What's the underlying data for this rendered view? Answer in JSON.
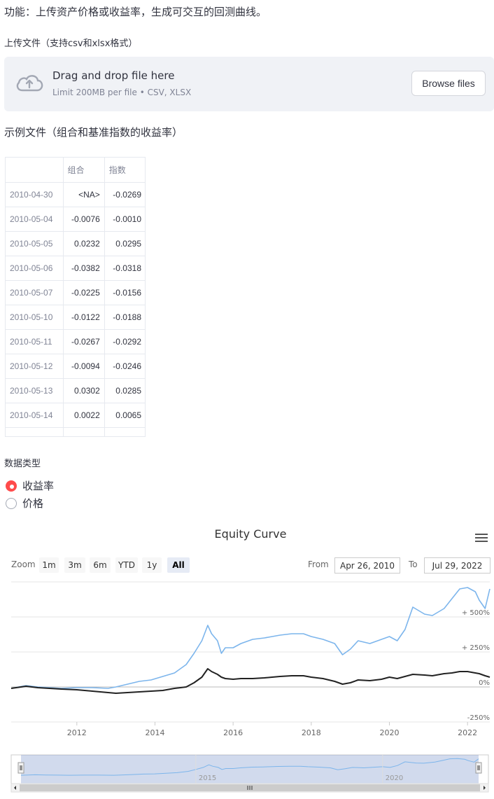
{
  "intro": "功能：上传资产价格或收益率，生成可交互的回测曲线。",
  "upload": {
    "label": "上传文件（支持csv和xlsx格式）",
    "title": "Drag and drop file here",
    "subtitle": "Limit 200MB per file • CSV, XLSX",
    "browse_label": "Browse files"
  },
  "example": {
    "label": "示例文件（组合和基准指数的收益率）",
    "columns": [
      "组合",
      "指数"
    ],
    "rows": [
      {
        "date": "2010-04-30",
        "c1": "<NA>",
        "c2": "-0.0269"
      },
      {
        "date": "2010-05-04",
        "c1": "-0.0076",
        "c2": "-0.0010"
      },
      {
        "date": "2010-05-05",
        "c1": "0.0232",
        "c2": "0.0295"
      },
      {
        "date": "2010-05-06",
        "c1": "-0.0382",
        "c2": "-0.0318"
      },
      {
        "date": "2010-05-07",
        "c1": "-0.0225",
        "c2": "-0.0156"
      },
      {
        "date": "2010-05-10",
        "c1": "-0.0122",
        "c2": "-0.0188"
      },
      {
        "date": "2010-05-11",
        "c1": "-0.0267",
        "c2": "-0.0292"
      },
      {
        "date": "2010-05-12",
        "c1": "-0.0094",
        "c2": "-0.0246"
      },
      {
        "date": "2010-05-13",
        "c1": "0.0302",
        "c2": "0.0285"
      },
      {
        "date": "2010-05-14",
        "c1": "0.0022",
        "c2": "0.0065"
      }
    ]
  },
  "data_type": {
    "label": "数据类型",
    "options": [
      "收益率",
      "价格"
    ],
    "selected": "收益率",
    "accent": "#ff4b4b"
  },
  "chart": {
    "zoom_label": "Zoom",
    "zoom_buttons": [
      "1m",
      "3m",
      "6m",
      "YTD",
      "1y",
      "All"
    ],
    "zoom_active": "All",
    "from_label": "From",
    "from_value": "Apr 26, 2010",
    "to_label": "To",
    "to_value": "Jul 29, 2022",
    "menu_icon": "hamburger-menu-icon"
  },
  "chart_data": {
    "type": "line",
    "title": "Equity Curve",
    "xlabel": "",
    "ylabel": "",
    "x_ticks": [
      "2012",
      "2014",
      "2016",
      "2018",
      "2020",
      "2022"
    ],
    "y_ticks": [
      "-250%",
      "0%",
      "+ 250%",
      "+ 500%"
    ],
    "ylim": [
      -250,
      750
    ],
    "x_range": [
      2010.32,
      2022.57
    ],
    "navigator_ticks": [
      "2015",
      "2020"
    ],
    "series": [
      {
        "color": "#7cb5ec",
        "x": [
          2010.32,
          2010.7,
          2011.0,
          2011.3,
          2011.6,
          2012.0,
          2012.4,
          2012.8,
          2013.0,
          2013.3,
          2013.6,
          2013.9,
          2014.2,
          2014.5,
          2014.8,
          2015.0,
          2015.2,
          2015.35,
          2015.45,
          2015.6,
          2015.7,
          2015.8,
          2016.0,
          2016.2,
          2016.5,
          2016.8,
          2017.0,
          2017.2,
          2017.5,
          2017.8,
          2018.0,
          2018.3,
          2018.6,
          2018.8,
          2019.0,
          2019.2,
          2019.5,
          2019.8,
          2020.0,
          2020.2,
          2020.4,
          2020.6,
          2020.9,
          2021.1,
          2021.4,
          2021.6,
          2021.8,
          2022.0,
          2022.2,
          2022.3,
          2022.45,
          2022.57
        ],
        "y": [
          -10,
          10,
          0,
          -5,
          -10,
          -5,
          -5,
          -10,
          0,
          20,
          40,
          50,
          75,
          100,
          160,
          240,
          330,
          440,
          380,
          330,
          240,
          280,
          280,
          310,
          340,
          350,
          360,
          370,
          380,
          380,
          360,
          340,
          310,
          230,
          270,
          330,
          310,
          340,
          360,
          330,
          410,
          570,
          520,
          510,
          560,
          630,
          700,
          710,
          680,
          620,
          560,
          700
        ]
      },
      {
        "color": "#222222",
        "x": [
          2010.32,
          2010.7,
          2011.0,
          2011.3,
          2011.6,
          2012.0,
          2012.4,
          2012.8,
          2013.0,
          2013.3,
          2013.6,
          2013.9,
          2014.2,
          2014.5,
          2014.8,
          2015.0,
          2015.2,
          2015.35,
          2015.45,
          2015.6,
          2015.7,
          2015.8,
          2016.0,
          2016.2,
          2016.5,
          2016.8,
          2017.0,
          2017.2,
          2017.5,
          2017.8,
          2018.0,
          2018.3,
          2018.6,
          2018.8,
          2019.0,
          2019.2,
          2019.5,
          2019.8,
          2020.0,
          2020.2,
          2020.4,
          2020.6,
          2020.9,
          2021.1,
          2021.4,
          2021.6,
          2021.8,
          2022.0,
          2022.2,
          2022.3,
          2022.45,
          2022.57
        ],
        "y": [
          -10,
          5,
          -5,
          -10,
          -15,
          -20,
          -30,
          -40,
          -45,
          -40,
          -35,
          -30,
          -25,
          -10,
          0,
          30,
          70,
          130,
          110,
          90,
          70,
          60,
          55,
          60,
          60,
          65,
          70,
          75,
          80,
          80,
          70,
          60,
          40,
          20,
          30,
          50,
          45,
          55,
          70,
          60,
          75,
          90,
          85,
          80,
          95,
          100,
          110,
          110,
          100,
          95,
          80,
          70
        ]
      }
    ]
  }
}
